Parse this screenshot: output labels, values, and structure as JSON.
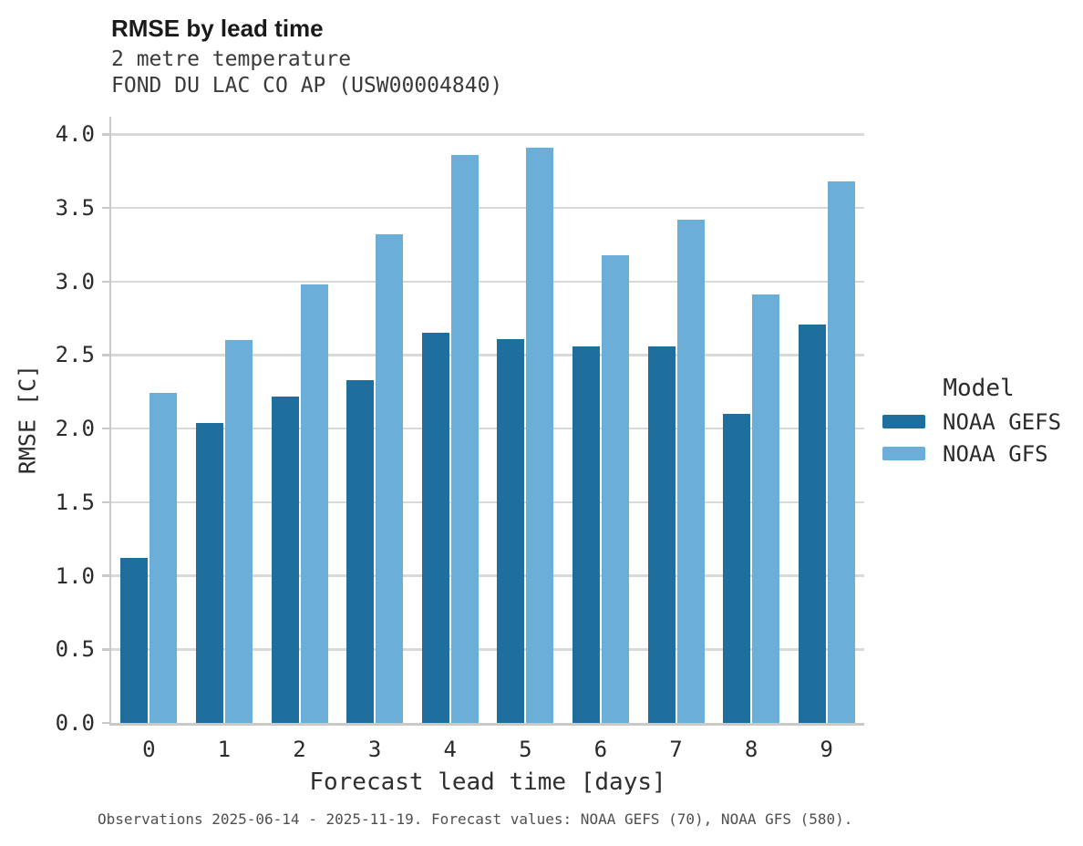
{
  "chart_data": {
    "type": "bar",
    "title": "RMSE by lead time",
    "subtitle": "2 metre temperature",
    "station": "FOND DU LAC CO AP (USW00004840)",
    "categories": [
      "0",
      "1",
      "2",
      "3",
      "4",
      "5",
      "6",
      "7",
      "8",
      "9"
    ],
    "series": [
      {
        "name": "NOAA GEFS",
        "color": "#1f6f9e",
        "values": [
          1.12,
          2.04,
          2.22,
          2.33,
          2.65,
          2.61,
          2.56,
          2.56,
          2.1,
          2.71
        ]
      },
      {
        "name": "NOAA GFS",
        "color": "#6bafd9",
        "values": [
          2.24,
          2.6,
          2.98,
          3.32,
          3.86,
          3.91,
          3.18,
          3.42,
          2.91,
          3.68
        ]
      }
    ],
    "xlabel": "Forecast lead time [days]",
    "ylabel": "RMSE [C]",
    "ylim": [
      0,
      4.12
    ],
    "yticks": [
      "0.0",
      "0.5",
      "1.0",
      "1.5",
      "2.0",
      "2.5",
      "3.0",
      "3.5",
      "4.0"
    ],
    "grid": "horizontal",
    "legend_title": "Model",
    "legend_position": "right"
  },
  "caption": "Observations 2025-06-14 - 2025-11-19. Forecast values: NOAA GEFS (70), NOAA GFS (580)."
}
